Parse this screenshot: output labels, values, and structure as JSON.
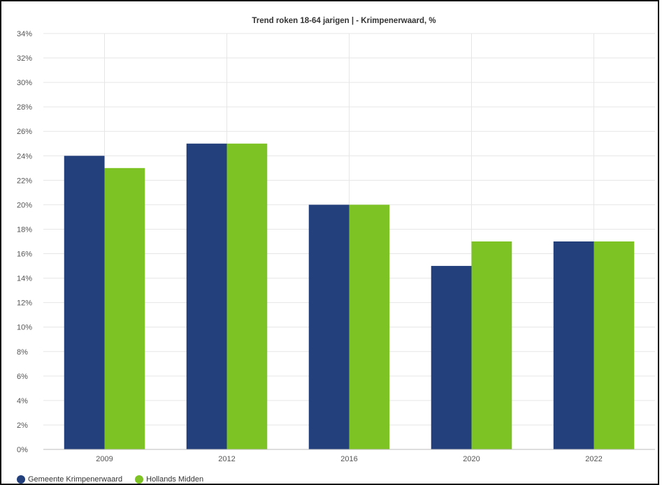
{
  "chart_data": {
    "type": "bar",
    "title": "Trend roken 18-64 jarigen | - Krimpenerwaard, %",
    "categories": [
      "2009",
      "2012",
      "2016",
      "2020",
      "2022"
    ],
    "series": [
      {
        "name": "Gemeente Krimpenerwaard",
        "color": "#233f7c",
        "values": [
          24,
          25,
          20,
          15,
          17
        ]
      },
      {
        "name": "Hollands Midden",
        "color": "#7dc324",
        "values": [
          23,
          25,
          20,
          17,
          17
        ]
      }
    ],
    "yticks": [
      "0%",
      "2%",
      "4%",
      "6%",
      "8%",
      "10%",
      "12%",
      "14%",
      "16%",
      "18%",
      "20%",
      "22%",
      "24%",
      "26%",
      "28%",
      "30%",
      "32%",
      "34%"
    ],
    "ylim": [
      0,
      34
    ],
    "grid": true,
    "legend_position": "bottom-left"
  }
}
